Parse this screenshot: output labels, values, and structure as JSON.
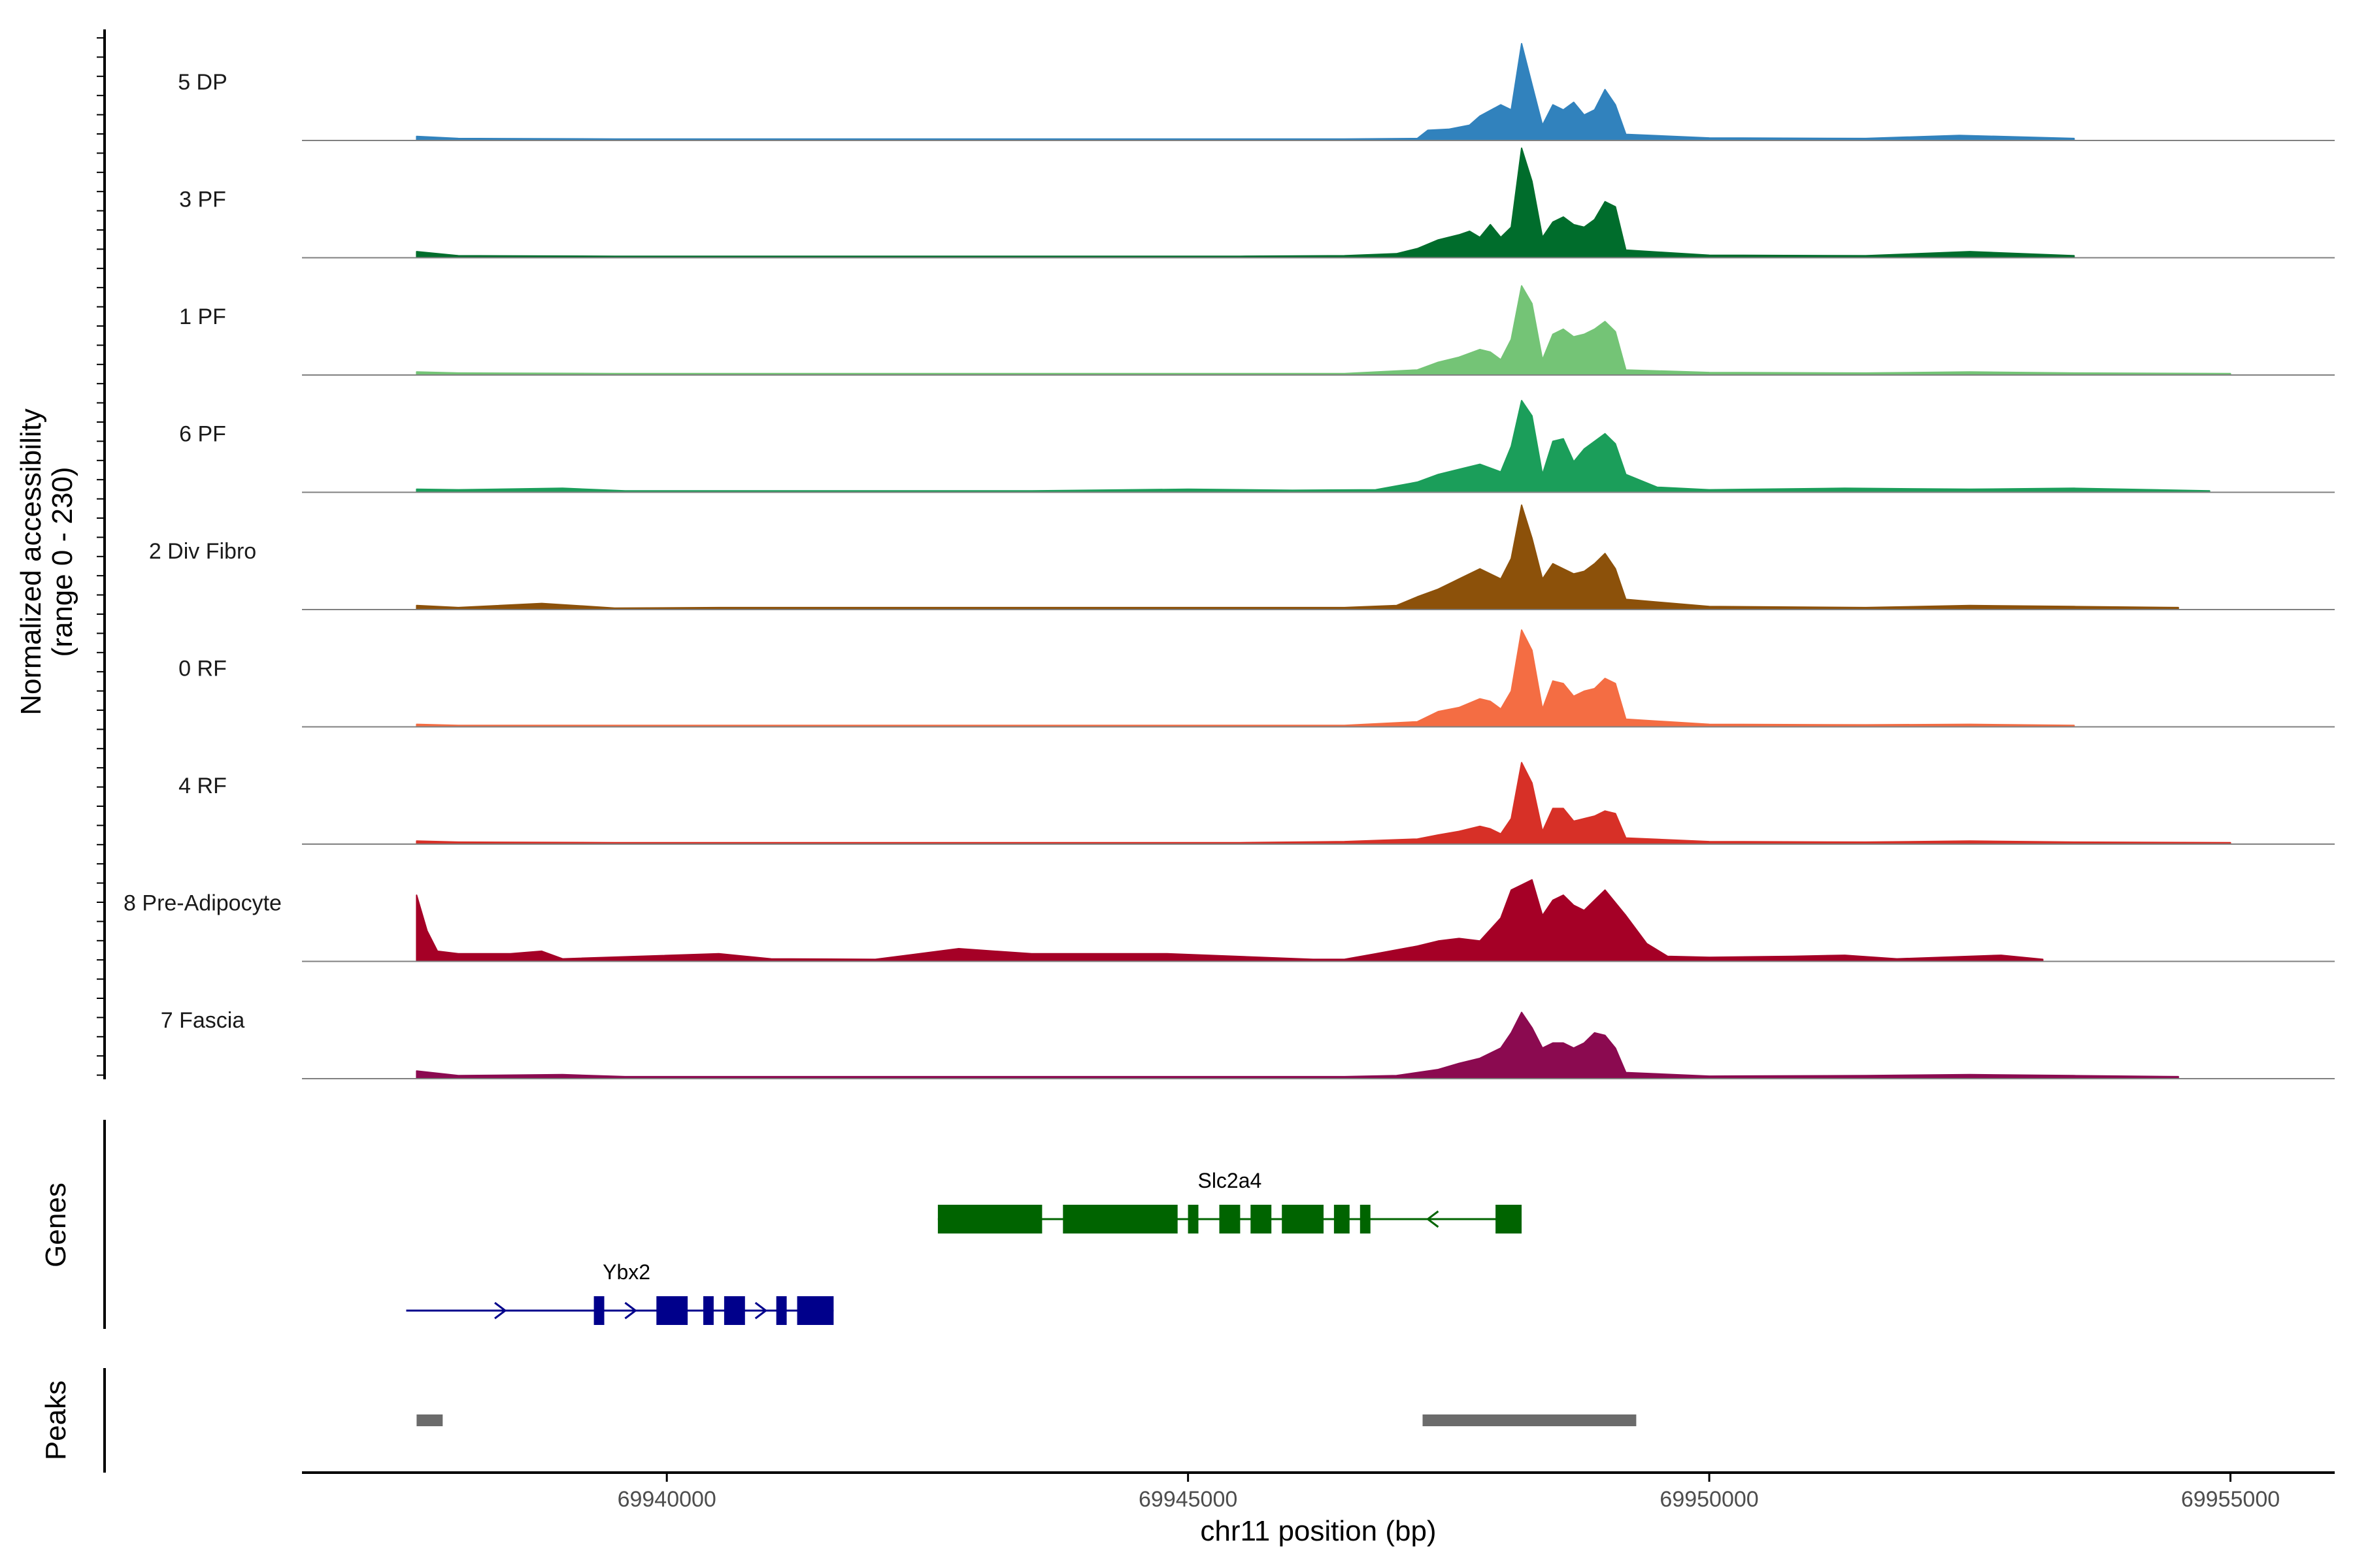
{
  "chart_data": {
    "type": "area",
    "ylabel_line1": "Normalized accessibility",
    "ylabel_line2": "(range 0 - 230)",
    "y_range": [
      0,
      230
    ],
    "xlabel": "chr11 position (bp)",
    "xlim": [
      69936500,
      69956000
    ],
    "x_ticks": [
      69940000,
      69945000,
      69950000,
      69955000
    ],
    "x_tick_labels": [
      "69940000",
      "69945000",
      "69950000",
      "69955000"
    ],
    "tracks": [
      {
        "label": "5 DP",
        "color": "#3182bd",
        "x": [
          69937600,
          69938000,
          69939500,
          69940500,
          69941500,
          69943500,
          69945500,
          69946500,
          69947200,
          69947300,
          69947500,
          69947700,
          69947800,
          69948000,
          69948100,
          69948200,
          69948300,
          69948400,
          69948500,
          69948600,
          69948700,
          69948800,
          69948900,
          69949000,
          69949100,
          69949200,
          69950000,
          69951500,
          69952400,
          69953500
        ],
        "values": [
          8,
          4,
          3,
          3,
          3,
          3,
          3,
          3,
          4,
          20,
          22,
          30,
          48,
          70,
          60,
          190,
          110,
          30,
          70,
          60,
          75,
          50,
          60,
          100,
          70,
          12,
          5,
          4,
          10,
          4
        ]
      },
      {
        "label": "3 PF",
        "color": "#006d2c",
        "x": [
          69937600,
          69938000,
          69939500,
          69940500,
          69941500,
          69943500,
          69945500,
          69946500,
          69947000,
          69947200,
          69947400,
          69947600,
          69947700,
          69947800,
          69947900,
          69948000,
          69948100,
          69948200,
          69948300,
          69948400,
          69948500,
          69948600,
          69948700,
          69948800,
          69948900,
          69949000,
          69949100,
          69949200,
          69950000,
          69951500,
          69952500,
          69953500
        ],
        "values": [
          12,
          4,
          3,
          3,
          3,
          3,
          3,
          4,
          8,
          18,
          35,
          45,
          52,
          40,
          65,
          40,
          60,
          215,
          150,
          40,
          70,
          80,
          65,
          60,
          75,
          110,
          100,
          15,
          5,
          4,
          12,
          4
        ]
      },
      {
        "label": "1 PF",
        "color": "#74c476",
        "x": [
          69937600,
          69938000,
          69939500,
          69940500,
          69941500,
          69943500,
          69945500,
          69946500,
          69947200,
          69947400,
          69947600,
          69947800,
          69947900,
          69948000,
          69948100,
          69948200,
          69948300,
          69948400,
          69948500,
          69948600,
          69948700,
          69948800,
          69948900,
          69949000,
          69949100,
          69949200,
          69950000,
          69951500,
          69952500,
          69953500,
          69955000
        ],
        "values": [
          6,
          4,
          3,
          3,
          3,
          3,
          3,
          3,
          10,
          25,
          35,
          50,
          45,
          30,
          70,
          175,
          140,
          30,
          80,
          90,
          75,
          80,
          90,
          105,
          85,
          10,
          5,
          4,
          6,
          4,
          3
        ]
      },
      {
        "label": "6 PF",
        "color": "#1b9e5a",
        "x": [
          69937600,
          69938000,
          69939000,
          69939600,
          69940500,
          69941500,
          69943500,
          69945000,
          69946000,
          69946800,
          69947200,
          69947400,
          69947600,
          69947800,
          69948000,
          69948100,
          69948200,
          69948300,
          69948400,
          69948500,
          69948600,
          69948700,
          69948800,
          69948900,
          69949000,
          69949100,
          69949200,
          69949500,
          69950000,
          69951300,
          69952500,
          69953500,
          69954800
        ],
        "values": [
          6,
          5,
          8,
          3,
          3,
          3,
          3,
          6,
          4,
          5,
          20,
          35,
          45,
          55,
          40,
          90,
          180,
          150,
          35,
          100,
          105,
          60,
          85,
          100,
          115,
          95,
          35,
          10,
          5,
          8,
          6,
          8,
          3
        ]
      },
      {
        "label": "2 Div Fibro",
        "color": "#8c510a",
        "x": [
          69937600,
          69938000,
          69938800,
          69939500,
          69940500,
          69941500,
          69943500,
          69945500,
          69946500,
          69947000,
          69947200,
          69947400,
          69947600,
          69947800,
          69948000,
          69948100,
          69948200,
          69948300,
          69948400,
          69948500,
          69948600,
          69948700,
          69948800,
          69948900,
          69949000,
          69949100,
          69949200,
          69950000,
          69951500,
          69952500,
          69953500,
          69954500
        ],
        "values": [
          8,
          4,
          12,
          3,
          4,
          4,
          4,
          4,
          4,
          8,
          25,
          40,
          60,
          80,
          60,
          100,
          205,
          140,
          60,
          90,
          80,
          70,
          75,
          90,
          110,
          80,
          20,
          6,
          4,
          8,
          6,
          4
        ]
      },
      {
        "label": "0 RF",
        "color": "#f46d43",
        "x": [
          69937600,
          69938000,
          69939500,
          69940500,
          69941500,
          69943500,
          69945500,
          69946500,
          69947200,
          69947400,
          69947600,
          69947800,
          69947900,
          69948000,
          69948100,
          69948200,
          69948300,
          69948400,
          69948500,
          69948600,
          69948700,
          69948800,
          69948900,
          69949000,
          69949100,
          69949200,
          69950000,
          69951500,
          69952500,
          69953500
        ],
        "values": [
          5,
          3,
          3,
          3,
          3,
          3,
          3,
          3,
          10,
          30,
          38,
          55,
          50,
          35,
          70,
          190,
          150,
          35,
          90,
          85,
          60,
          70,
          75,
          95,
          85,
          15,
          5,
          4,
          5,
          3
        ]
      },
      {
        "label": "4 RF",
        "color": "#d73027",
        "x": [
          69937600,
          69938000,
          69939500,
          69940500,
          69941500,
          69943500,
          69945500,
          69946500,
          69947200,
          69947400,
          69947600,
          69947800,
          69947900,
          69948000,
          69948100,
          69948200,
          69948300,
          69948400,
          69948500,
          69948600,
          69948700,
          69948800,
          69948900,
          69949000,
          69949100,
          69949200,
          69950000,
          69951500,
          69952500,
          69953500,
          69955000
        ],
        "values": [
          6,
          4,
          3,
          3,
          3,
          3,
          3,
          5,
          10,
          18,
          25,
          35,
          30,
          20,
          50,
          160,
          120,
          25,
          70,
          70,
          45,
          50,
          55,
          65,
          60,
          12,
          5,
          4,
          6,
          4,
          3
        ]
      },
      {
        "label": "8 Pre-Adipocyte",
        "color": "#a50026",
        "x": [
          69937600,
          69937700,
          69937800,
          69938000,
          69938500,
          69938800,
          69939000,
          69940500,
          69941000,
          69942000,
          69942800,
          69943500,
          69944200,
          69944800,
          69946200,
          69946500,
          69946800,
          69947200,
          69947400,
          69947600,
          69947800,
          69948000,
          69948100,
          69948200,
          69948300,
          69948400,
          69948500,
          69948600,
          69948700,
          69948800,
          69948900,
          69949000,
          69949200,
          69949400,
          69949600,
          69950000,
          69950800,
          69951300,
          69951800,
          69952500,
          69952800,
          69953200
        ],
        "values": [
          130,
          60,
          20,
          15,
          15,
          20,
          5,
          15,
          5,
          4,
          25,
          15,
          15,
          15,
          4,
          4,
          15,
          30,
          40,
          45,
          40,
          85,
          140,
          150,
          160,
          90,
          120,
          130,
          110,
          100,
          120,
          140,
          90,
          35,
          10,
          8,
          10,
          12,
          5,
          10,
          12,
          4
        ]
      },
      {
        "label": "7 Fascia",
        "color": "#8b0a50",
        "x": [
          69937600,
          69938000,
          69939000,
          69939600,
          69940500,
          69941500,
          69943500,
          69945500,
          69946500,
          69947000,
          69947200,
          69947400,
          69947600,
          69947800,
          69948000,
          69948100,
          69948200,
          69948300,
          69948400,
          69948500,
          69948600,
          69948700,
          69948800,
          69948900,
          69949000,
          69949100,
          69949200,
          69950000,
          69951500,
          69952500,
          69953500,
          69954500
        ],
        "values": [
          15,
          6,
          8,
          4,
          4,
          4,
          4,
          4,
          4,
          6,
          12,
          18,
          30,
          40,
          60,
          90,
          130,
          100,
          60,
          70,
          70,
          60,
          70,
          90,
          85,
          60,
          12,
          5,
          6,
          8,
          6,
          4
        ]
      }
    ],
    "genes": [
      {
        "name": "Slc2a4",
        "color": "#006400",
        "strand": "-",
        "start": 69942600,
        "end": 69948200,
        "exons": [
          [
            69942600,
            69943600
          ],
          [
            69943800,
            69944900
          ],
          [
            69945000,
            69945100
          ],
          [
            69945300,
            69945500
          ],
          [
            69945600,
            69945800
          ],
          [
            69945900,
            69946300
          ],
          [
            69946400,
            69946550
          ],
          [
            69946650,
            69946750
          ],
          [
            69947950,
            69948200
          ]
        ]
      },
      {
        "name": "Ybx2",
        "color": "#00008b",
        "strand": "+",
        "start": 69937500,
        "end": 69941600,
        "exons": [
          [
            69939300,
            69939400
          ],
          [
            69939900,
            69940200
          ],
          [
            69940350,
            69940450
          ],
          [
            69940550,
            69940750
          ],
          [
            69941050,
            69941150
          ],
          [
            69941250,
            69941600
          ]
        ]
      }
    ],
    "peaks": [
      [
        69937600,
        69937850
      ],
      [
        69947250,
        69949300
      ]
    ],
    "peak_color": "#6b6b6b",
    "side_labels": {
      "genes": "Genes",
      "peaks": "Peaks"
    }
  }
}
